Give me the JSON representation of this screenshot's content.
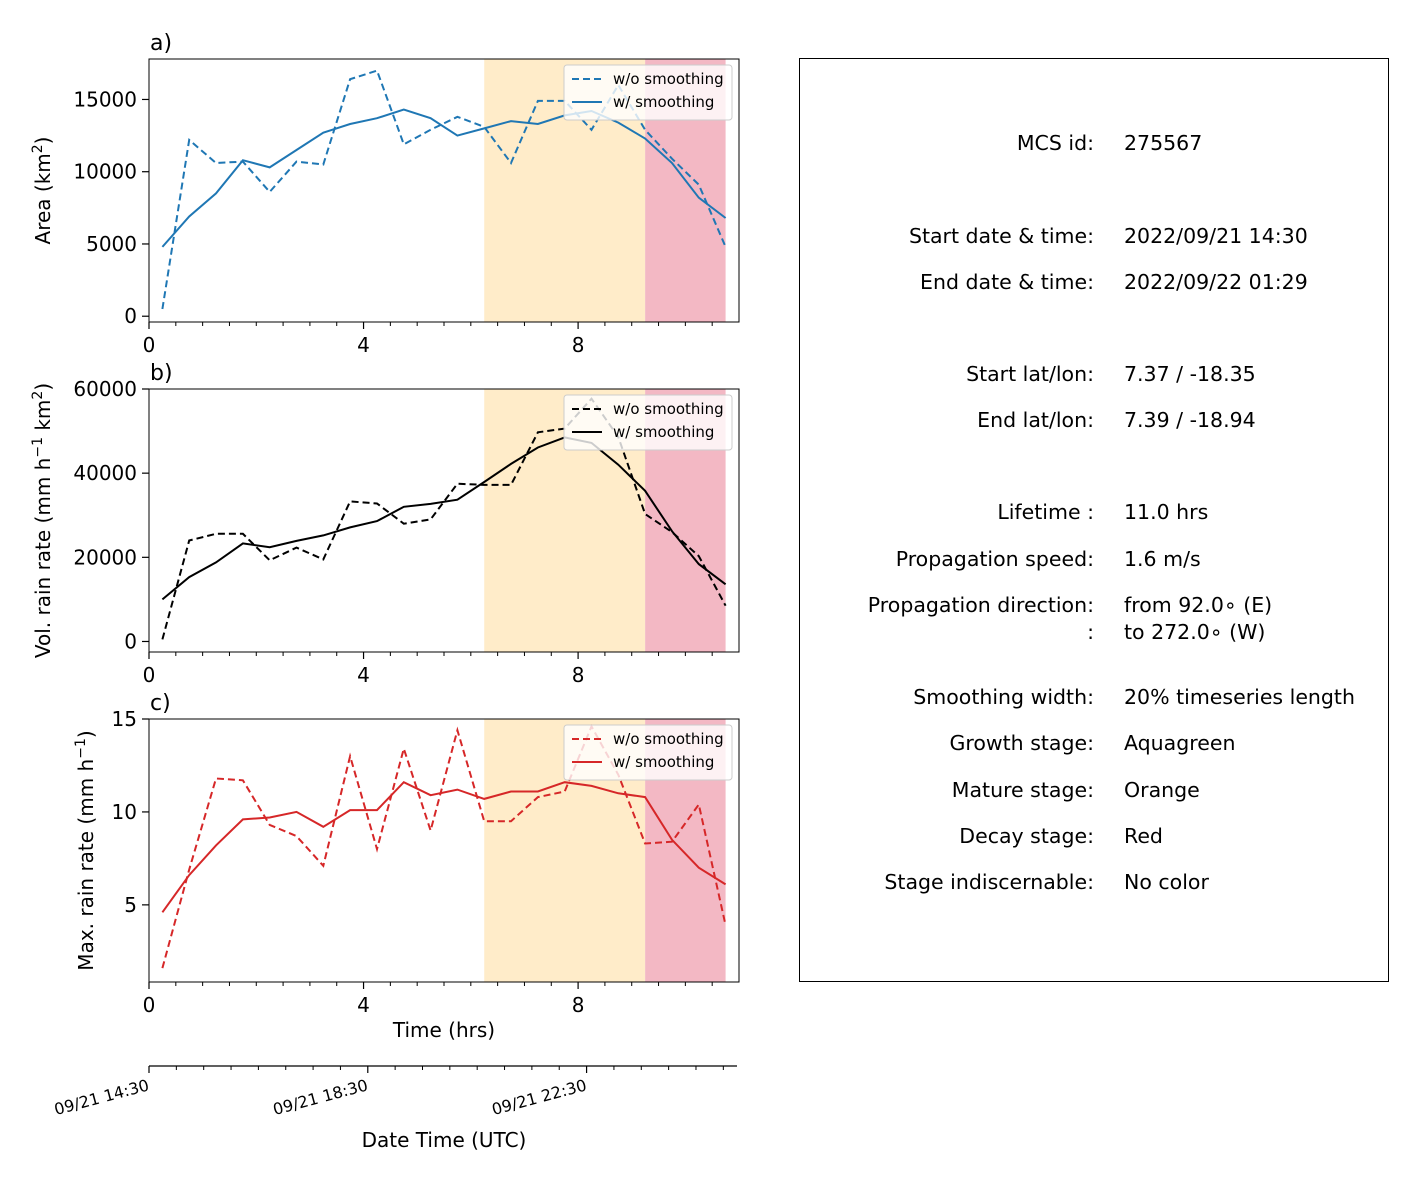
{
  "colors": {
    "mature_span": "#ffecc9",
    "decay_span": "#f3b8c4",
    "area_series": "#1f77b4",
    "volrain_series": "#000000",
    "maxrain_series": "#d62728"
  },
  "chart_data": [
    {
      "type": "line",
      "panel_label": "a)",
      "title": "",
      "xlabel": "",
      "ylabel": "Area  (km²)",
      "ylabel_main": "Area  (km",
      "ylabel_sup": "2",
      "ylabel_end": ")",
      "xlim": [
        0,
        11
      ],
      "ylim": [
        -400,
        17800
      ],
      "xticks": [
        0,
        4,
        8
      ],
      "xtick_labels": [
        "0",
        "4",
        "8"
      ],
      "yticks": [
        0,
        5000,
        10000,
        15000
      ],
      "ytick_labels": [
        "0",
        "5000",
        "10000",
        "15000"
      ],
      "shaded_spans": [
        {
          "stage": "mature",
          "x": [
            6.25,
            9.25
          ]
        },
        {
          "stage": "decay",
          "x": [
            9.25,
            10.75
          ]
        }
      ],
      "legend": {
        "loc": "upper right",
        "entries": [
          "w/o smoothing",
          "w/ smoothing"
        ]
      },
      "x": [
        0.25,
        0.75,
        1.25,
        1.75,
        2.25,
        2.75,
        3.25,
        3.75,
        4.25,
        4.75,
        5.25,
        5.75,
        6.25,
        6.75,
        7.25,
        7.75,
        8.25,
        8.75,
        9.25,
        9.75,
        10.25,
        10.75
      ],
      "series": [
        {
          "name": "w/o smoothing",
          "style": "dashed",
          "values": [
            500,
            12200,
            10600,
            10700,
            8600,
            10700,
            10500,
            16400,
            17000,
            11900,
            12900,
            13800,
            13100,
            10600,
            14900,
            14900,
            12900,
            16000,
            12900,
            10900,
            9100,
            4800
          ]
        },
        {
          "name": "w/ smoothing",
          "style": "solid",
          "values": [
            4800,
            6900,
            8500,
            10800,
            10300,
            11500,
            12700,
            13300,
            13700,
            14300,
            13700,
            12500,
            13000,
            13500,
            13300,
            13900,
            14200,
            13400,
            12300,
            10600,
            8200,
            6800
          ]
        }
      ]
    },
    {
      "type": "line",
      "panel_label": "b)",
      "title": "",
      "xlabel": "",
      "ylabel": "Vol. rain rate (mm h⁻¹ km²)",
      "ylabel_main": "Vol. rain rate (mm h",
      "ylabel_sup1": "−1",
      "ylabel_mid": " km",
      "ylabel_sup2": "2",
      "ylabel_end": ")",
      "xlim": [
        0,
        11
      ],
      "ylim": [
        -2500,
        60000
      ],
      "xticks": [
        0,
        4,
        8
      ],
      "xtick_labels": [
        "0",
        "4",
        "8"
      ],
      "yticks": [
        0,
        20000,
        40000,
        60000
      ],
      "ytick_labels": [
        "0",
        "20000",
        "40000",
        "60000"
      ],
      "shaded_spans": [
        {
          "stage": "mature",
          "x": [
            6.25,
            9.25
          ]
        },
        {
          "stage": "decay",
          "x": [
            9.25,
            10.75
          ]
        }
      ],
      "legend": {
        "loc": "upper right",
        "entries": [
          "w/o smoothing",
          "w/ smoothing"
        ]
      },
      "x": [
        0.25,
        0.75,
        1.25,
        1.75,
        2.25,
        2.75,
        3.25,
        3.75,
        4.25,
        4.75,
        5.25,
        5.75,
        6.25,
        6.75,
        7.25,
        7.75,
        8.25,
        8.75,
        9.25,
        9.75,
        10.25,
        10.75
      ],
      "series": [
        {
          "name": "w/o smoothing",
          "style": "dashed",
          "values": [
            500,
            24000,
            25600,
            25600,
            19300,
            22300,
            19500,
            33300,
            32800,
            28000,
            29000,
            37500,
            37200,
            37200,
            49700,
            50600,
            57700,
            48600,
            30300,
            26000,
            20300,
            8500
          ]
        },
        {
          "name": "w/ smoothing",
          "style": "solid",
          "values": [
            10000,
            15300,
            18800,
            23300,
            22400,
            23900,
            25200,
            27100,
            28600,
            32000,
            32700,
            33700,
            37900,
            42200,
            46100,
            48500,
            47200,
            42000,
            35800,
            26200,
            18400,
            13600
          ]
        }
      ]
    },
    {
      "type": "line",
      "panel_label": "c)",
      "title": "",
      "xlabel": "Time (hrs)",
      "ylabel": "Max. rain rate  (mm h⁻¹)",
      "ylabel_main": "Max. rain rate  (mm h",
      "ylabel_sup": "−1",
      "ylabel_end": ")",
      "xlim": [
        0,
        11
      ],
      "ylim": [
        0.85,
        15
      ],
      "xticks": [
        0,
        4,
        8
      ],
      "xtick_labels": [
        "0",
        "4",
        "8"
      ],
      "yticks": [
        5,
        10,
        15
      ],
      "ytick_labels": [
        "5",
        "10",
        "15"
      ],
      "shaded_spans": [
        {
          "stage": "mature",
          "x": [
            6.25,
            9.25
          ]
        },
        {
          "stage": "decay",
          "x": [
            9.25,
            10.75
          ]
        }
      ],
      "legend": {
        "loc": "upper right",
        "entries": [
          "w/o smoothing",
          "w/ smoothing"
        ]
      },
      "x": [
        0.25,
        0.75,
        1.25,
        1.75,
        2.25,
        2.75,
        3.25,
        3.75,
        4.25,
        4.75,
        5.25,
        5.75,
        6.25,
        6.75,
        7.25,
        7.75,
        8.25,
        8.75,
        9.25,
        9.75,
        10.25,
        10.75
      ],
      "series": [
        {
          "name": "w/o smoothing",
          "style": "dashed",
          "values": [
            1.6,
            6.9,
            11.8,
            11.7,
            9.3,
            8.7,
            7.1,
            13.0,
            8.0,
            13.4,
            9.0,
            14.4,
            9.5,
            9.5,
            10.8,
            11.1,
            14.6,
            12.0,
            8.3,
            8.4,
            10.4,
            3.9
          ]
        },
        {
          "name": "w/ smoothing",
          "style": "solid",
          "values": [
            4.6,
            6.6,
            8.2,
            9.6,
            9.7,
            10.0,
            9.2,
            10.1,
            10.1,
            11.6,
            10.9,
            11.2,
            10.7,
            11.1,
            11.1,
            11.6,
            11.4,
            11.0,
            10.8,
            8.5,
            7.0,
            6.1
          ]
        }
      ]
    }
  ],
  "datetime_axis": {
    "xlabel": "Date Time (UTC)",
    "ticks": [
      {
        "hour": 0,
        "label": "09/21 14:30"
      },
      {
        "hour": 4,
        "label": "09/21 18:30"
      },
      {
        "hour": 8,
        "label": "09/21 22:30"
      }
    ],
    "minor_step_hours": 0.5,
    "range_hours": [
      0,
      10.75
    ]
  },
  "info": [
    {
      "key": "MCS id:",
      "value": "275567"
    },
    {
      "key": "Start date & time:",
      "value": "2022/09/21 14:30"
    },
    {
      "key": "End date & time:",
      "value": "2022/09/22 01:29"
    },
    {
      "key": "Start lat/lon:",
      "value": "7.37 / -18.35"
    },
    {
      "key": "End lat/lon:",
      "value": "7.39 / -18.94"
    },
    {
      "key": "Lifetime :",
      "value": "11.0 hrs"
    },
    {
      "key": "Propagation speed:",
      "value": "1.6 m/s"
    },
    {
      "key": "Propagation direction:",
      "value": "from  92.0∘ (E)"
    },
    {
      "key": ":",
      "value": "to   272.0∘ (W)"
    },
    {
      "key": "Smoothing width:",
      "value": "20% timeseries length"
    },
    {
      "key": "Growth stage:",
      "value": "Aquagreen"
    },
    {
      "key": "Mature stage:",
      "value": "Orange"
    },
    {
      "key": "Decay stage:",
      "value": "Red"
    },
    {
      "key": "Stage indiscernable:",
      "value": "No color"
    }
  ]
}
